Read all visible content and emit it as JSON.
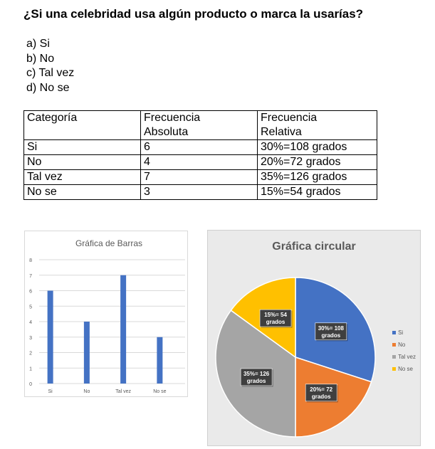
{
  "question": "¿Si una celebridad usa algún producto o marca la usarías?",
  "options": [
    "a) Si",
    "b) No",
    "c) Tal vez",
    "d) No se"
  ],
  "table": {
    "headers": [
      [
        "Categoría"
      ],
      [
        "Frecuencia",
        "Absoluta"
      ],
      [
        "Frecuencia",
        "Relativa"
      ]
    ],
    "rows": [
      [
        "Si",
        "6",
        "30%=108 grados"
      ],
      [
        "No",
        "4",
        "20%=72 grados"
      ],
      [
        "Tal vez",
        "7",
        "35%=126 grados"
      ],
      [
        "No se",
        "3",
        "15%=54 grados"
      ]
    ]
  },
  "chart_data": [
    {
      "type": "bar",
      "title": "Gráfica de Barras",
      "categories": [
        "Si",
        "No",
        "Tal vez",
        "No se"
      ],
      "values": [
        6,
        4,
        7,
        3
      ],
      "ylim": [
        0,
        8
      ],
      "yticks": [
        0,
        1,
        2,
        3,
        4,
        5,
        6,
        7,
        8
      ],
      "grid": true,
      "color": "#4472c4"
    },
    {
      "type": "pie",
      "title": "Gráfica circular",
      "categories": [
        "Si",
        "No",
        "Tal vez",
        "No se"
      ],
      "values": [
        30,
        20,
        35,
        15
      ],
      "labels": [
        [
          "30%= 108",
          "grados"
        ],
        [
          "20%= 72",
          "grados"
        ],
        [
          "35%= 126",
          "grados"
        ],
        [
          "15%= 54",
          "grados"
        ]
      ],
      "colors": [
        "#4472c4",
        "#ed7d31",
        "#a5a5a5",
        "#ffc000"
      ],
      "legend": "right"
    }
  ]
}
